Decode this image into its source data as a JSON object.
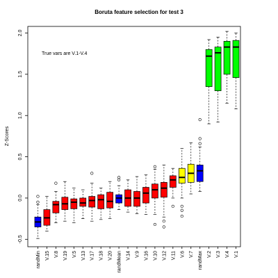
{
  "chart_data": {
    "type": "box",
    "title": "Boruta feature selection for test 3",
    "y_label": "Z-Scores",
    "annotation": "True vars are V.1-V.4",
    "categories": [
      "randMin",
      "V.15",
      "V.8",
      "V.19",
      "V.5",
      "V.13",
      "V.17",
      "V.18",
      "V.20",
      "randMean",
      "V.14",
      "V.9",
      "V.16",
      "V.10",
      "V.12",
      "V.11",
      "V.6",
      "V.7",
      "randMax",
      "V.2",
      "V.3",
      "V.4",
      "V.1"
    ],
    "colors": [
      "#0000ff",
      "#ff0000",
      "#ff0000",
      "#ff0000",
      "#ff0000",
      "#ff0000",
      "#ff0000",
      "#ff0000",
      "#ff0000",
      "#0000ff",
      "#ff0000",
      "#ff0000",
      "#ff0000",
      "#ff0000",
      "#ff0000",
      "#ff0000",
      "#ffff00",
      "#ffff00",
      "#0000ff",
      "#00ff00",
      "#00ff00",
      "#00ff00",
      "#00ff00"
    ],
    "boxes": [
      {
        "low": -0.49,
        "q1": -0.35,
        "median": -0.29,
        "q3": -0.23,
        "high": -0.08,
        "outliers": [
          0.02,
          -0.05
        ]
      },
      {
        "low": -0.4,
        "q1": -0.33,
        "median": -0.24,
        "q3": -0.14,
        "high": 0.02,
        "outliers": []
      },
      {
        "low": -0.3,
        "q1": -0.18,
        "median": -0.08,
        "q3": -0.04,
        "high": 0.08,
        "outliers": [
          0.18
        ]
      },
      {
        "low": -0.28,
        "q1": -0.14,
        "median": -0.07,
        "q3": 0.01,
        "high": 0.2,
        "outliers": []
      },
      {
        "low": -0.3,
        "q1": -0.13,
        "median": -0.05,
        "q3": -0.01,
        "high": 0.12,
        "outliers": []
      },
      {
        "low": -0.25,
        "q1": -0.1,
        "median": -0.06,
        "q3": 0.0,
        "high": 0.1,
        "outliers": []
      },
      {
        "low": -0.28,
        "q1": -0.11,
        "median": -0.03,
        "q3": 0.02,
        "high": 0.18,
        "outliers": [
          0.3
        ]
      },
      {
        "low": -0.26,
        "q1": -0.13,
        "median": -0.02,
        "q3": 0.04,
        "high": 0.12,
        "outliers": []
      },
      {
        "low": -0.25,
        "q1": -0.12,
        "median": -0.04,
        "q3": 0.07,
        "high": 0.2,
        "outliers": []
      },
      {
        "low": -0.14,
        "q1": -0.06,
        "median": 0.0,
        "q3": 0.04,
        "high": 0.15,
        "outliers": [
          0.22,
          0.25
        ]
      },
      {
        "low": -0.17,
        "q1": -0.1,
        "median": 0.0,
        "q3": 0.1,
        "high": 0.22,
        "outliers": []
      },
      {
        "low": -0.19,
        "q1": -0.1,
        "median": 0.0,
        "q3": 0.08,
        "high": 0.26,
        "outliers": []
      },
      {
        "low": -0.2,
        "q1": -0.06,
        "median": 0.06,
        "q3": 0.13,
        "high": 0.28,
        "outliers": []
      },
      {
        "low": -0.2,
        "q1": 0.0,
        "median": 0.1,
        "q3": 0.17,
        "high": 0.35,
        "outliers": [
          0.38,
          -0.32
        ]
      },
      {
        "low": -0.23,
        "q1": 0.01,
        "median": 0.12,
        "q3": 0.19,
        "high": 0.4,
        "outliers": [
          -0.35,
          -0.28
        ]
      },
      {
        "low": 0.0,
        "q1": 0.13,
        "median": 0.22,
        "q3": 0.27,
        "high": 0.36,
        "outliers": [
          -0.1
        ]
      },
      {
        "low": 0.0,
        "q1": 0.18,
        "median": 0.25,
        "q3": 0.36,
        "high": 0.6,
        "outliers": [
          -0.22,
          -0.15,
          -0.1
        ]
      },
      {
        "low": 0.05,
        "q1": 0.19,
        "median": 0.3,
        "q3": 0.41,
        "high": 0.67,
        "outliers": []
      },
      {
        "low": 0.08,
        "q1": 0.2,
        "median": 0.33,
        "q3": 0.4,
        "high": 0.62,
        "outliers": [
          0.72,
          0.95,
          0.66
        ]
      },
      {
        "low": 0.9,
        "q1": 1.35,
        "median": 1.72,
        "q3": 1.8,
        "high": 1.92,
        "outliers": []
      },
      {
        "low": 0.92,
        "q1": 1.3,
        "median": 1.76,
        "q3": 1.83,
        "high": 1.95,
        "outliers": []
      },
      {
        "low": 1.15,
        "q1": 1.5,
        "median": 1.83,
        "q3": 1.9,
        "high": 2.02,
        "outliers": []
      },
      {
        "low": 1.08,
        "q1": 1.46,
        "median": 1.83,
        "q3": 1.91,
        "high": 2.0,
        "outliers": []
      }
    ],
    "ylim": [
      -0.59,
      2.08
    ],
    "yticks": [
      -0.5,
      {
        "value": 0,
        "label": "0.0"
      },
      0.5,
      {
        "value": 1,
        "label": "1.0"
      },
      1.5,
      {
        "value": 2,
        "label": "2.0"
      }
    ]
  }
}
